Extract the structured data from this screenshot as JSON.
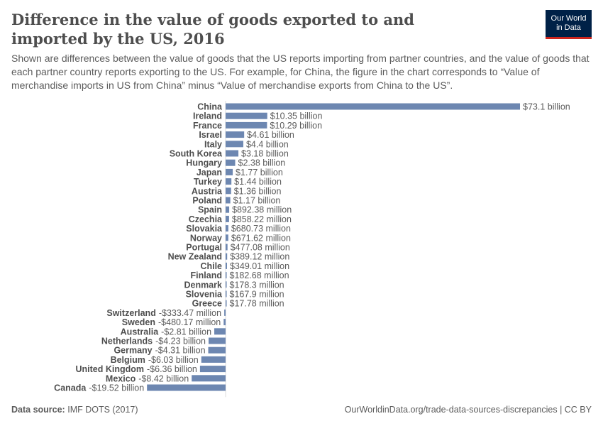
{
  "header": {
    "title": "Difference in the value of goods exported to and imported by the US, 2016",
    "subtitle": "Shown are differences between the value of goods that the US reports importing from partner countries, and the value of goods that each partner country reports exporting to the US. For example, for China, the figure in the chart corresponds to “Value of merchandise imports in US from China” minus “Value of merchandise exports from China to the US”.",
    "logo_line1": "Our World",
    "logo_line2": "in Data"
  },
  "footer": {
    "source_label": "Data source:",
    "source": "IMF DOTS (2017)",
    "url": "OurWorldinData.org/trade-data-sources-discrepancies | CC BY"
  },
  "chart_data": {
    "type": "bar",
    "orientation": "horizontal",
    "bar_color": "#6d87b1",
    "unit": "US dollars",
    "categories": [
      "China",
      "Ireland",
      "France",
      "Israel",
      "Italy",
      "South Korea",
      "Hungary",
      "Japan",
      "Turkey",
      "Austria",
      "Poland",
      "Spain",
      "Czechia",
      "Slovakia",
      "Norway",
      "Portugal",
      "New Zealand",
      "Chile",
      "Finland",
      "Denmark",
      "Slovenia",
      "Greece",
      "Switzerland",
      "Sweden",
      "Australia",
      "Netherlands",
      "Germany",
      "Belgium",
      "United Kingdom",
      "Mexico",
      "Canada"
    ],
    "values": [
      73100000000,
      10350000000,
      10290000000,
      4610000000,
      4400000000,
      3180000000,
      2380000000,
      1770000000,
      1440000000,
      1360000000,
      1170000000,
      892380000,
      858220000,
      680730000,
      671620000,
      477080000,
      389120000,
      349010000,
      182680000,
      178300000,
      167900000,
      17780000,
      -333470000,
      -480170000,
      -2810000000,
      -4230000000,
      -4310000000,
      -6030000000,
      -6360000000,
      -8420000000,
      -19520000000
    ],
    "labels": [
      "$73.1 billion",
      "$10.35 billion",
      "$10.29 billion",
      "$4.61 billion",
      "$4.4 billion",
      "$3.18 billion",
      "$2.38 billion",
      "$1.77 billion",
      "$1.44 billion",
      "$1.36 billion",
      "$1.17 billion",
      "$892.38 million",
      "$858.22 million",
      "$680.73 million",
      "$671.62 million",
      "$477.08 million",
      "$389.12 million",
      "$349.01 million",
      "$182.68 million",
      "$178.3 million",
      "$167.9 million",
      "$17.78 million",
      "-$333.47 million",
      "-$480.17 million",
      "-$2.81 billion",
      "-$4.23 billion",
      "-$4.31 billion",
      "-$6.03 billion",
      "-$6.36 billion",
      "-$8.42 billion",
      "-$19.52 billion"
    ]
  }
}
